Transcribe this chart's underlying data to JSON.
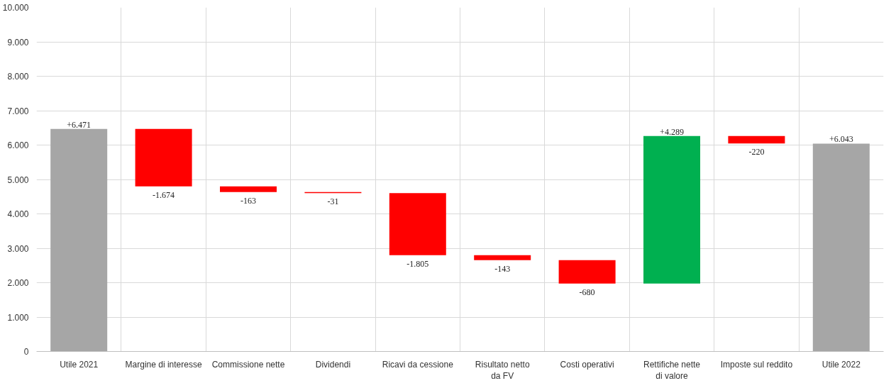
{
  "chart_data": {
    "type": "bar",
    "categories": [
      "Utile 2021",
      "Margine di interesse",
      "Commissione nette",
      "Dividendi",
      "Ricavi da cessione",
      "Risultato netto da FV",
      "Costi operativi",
      "Rettifiche nette di valore",
      "Imposte sul reddito",
      "Utile 2022"
    ],
    "values": [
      6471,
      -1674,
      -163,
      -31,
      -1805,
      -143,
      -680,
      4289,
      -220,
      6043
    ],
    "base": [
      0,
      6471,
      4797,
      4634,
      4603,
      2798,
      2655,
      1975,
      6264,
      0
    ],
    "colors": [
      "#a6a6a6",
      "#ff0000",
      "#ff0000",
      "#ff0000",
      "#ff0000",
      "#ff0000",
      "#ff0000",
      "#00b050",
      "#ff0000",
      "#a6a6a6"
    ],
    "value_labels": [
      "+6.471",
      "-1.674",
      "-163",
      "-31",
      "-1.805",
      "-143",
      "-680",
      "+4.289",
      "-220",
      "+6.043"
    ],
    "ylim": [
      0,
      10000
    ],
    "yticks": [
      {
        "value": 0,
        "label": "0"
      },
      {
        "value": 1000,
        "label": "1.000"
      },
      {
        "value": 2000,
        "label": "2.000"
      },
      {
        "value": 3000,
        "label": "3.000"
      },
      {
        "value": 4000,
        "label": "4.000"
      },
      {
        "value": 5000,
        "label": "5.000"
      },
      {
        "value": 6000,
        "label": "6.000"
      },
      {
        "value": 7000,
        "label": "7.000"
      },
      {
        "value": 8000,
        "label": "8.000"
      },
      {
        "value": 9000,
        "label": "9.000"
      },
      {
        "value": 10000,
        "label": "10.000"
      }
    ],
    "grid": true
  }
}
